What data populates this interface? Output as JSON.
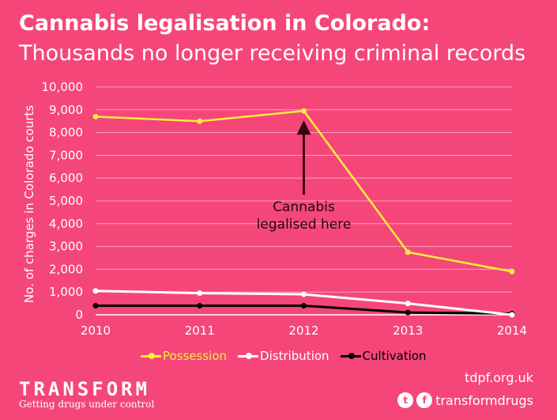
{
  "title_line1": "Cannabis legalisation in Colorado:",
  "title_line2": "Thousands no longer receiving criminal records",
  "colors": {
    "background": "#f5467a",
    "possession": "#f6ee3d",
    "distribution": "#ffffff",
    "cultivation": "#000000",
    "arrow": "#3a0212"
  },
  "chart_data": {
    "type": "line",
    "x": [
      2010,
      2011,
      2012,
      2013,
      2014
    ],
    "series": [
      {
        "name": "Possession",
        "values": [
          8700,
          8500,
          8950,
          2750,
          1900
        ]
      },
      {
        "name": "Distribution",
        "values": [
          1050,
          950,
          900,
          500,
          0
        ]
      },
      {
        "name": "Cultivation",
        "values": [
          400,
          400,
          400,
          100,
          50
        ]
      }
    ],
    "ylabel": "No. of charges in Colorado courts",
    "ylim": [
      0,
      10000
    ],
    "yticks": [
      "10,000",
      "9,000",
      "8,000",
      "7,000",
      "6,000",
      "5,000",
      "4,000",
      "3,000",
      "2,000",
      "1,000",
      "0"
    ],
    "xticks": [
      "2010",
      "2011",
      "2012",
      "2013",
      "2014"
    ],
    "annotation": {
      "x": 2012,
      "text_line1": "Cannabis",
      "text_line2": "legalised here"
    },
    "grid": true,
    "legend": "bottom"
  },
  "footer": {
    "url": "tdpf.org.uk",
    "social_handle": "transformdrugs",
    "twitter_icon": "twitter-icon",
    "facebook_icon": "facebook-icon",
    "twitter_glyph": "t",
    "facebook_glyph": "f"
  },
  "logo": {
    "word": "TRANSFORM",
    "tagline": "Getting drugs under control"
  }
}
